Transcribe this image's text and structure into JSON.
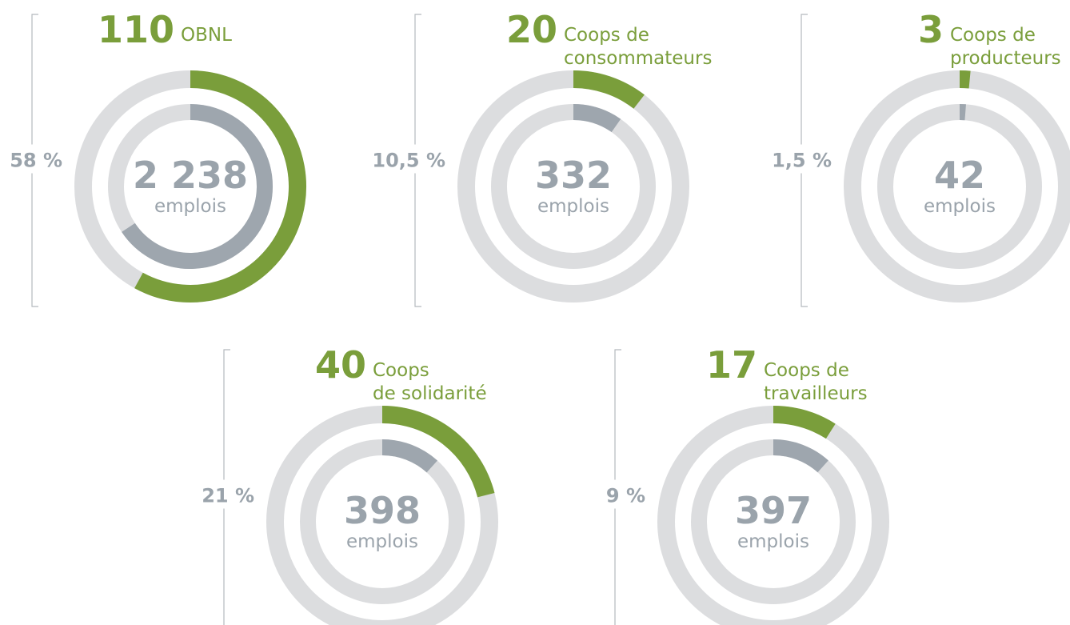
{
  "chart_data": [
    {
      "type": "donut",
      "count": 110,
      "label": [
        "OBNL"
      ],
      "percent": 58,
      "percent_label": "58 %",
      "jobs": 2238,
      "jobs_label": "2 238",
      "unit": "emplois"
    },
    {
      "type": "donut",
      "count": 20,
      "label": [
        "Coops de",
        "consommateurs"
      ],
      "percent": 10.5,
      "percent_label": "10,5 %",
      "jobs": 332,
      "jobs_label": "332",
      "unit": "emplois"
    },
    {
      "type": "donut",
      "count": 3,
      "label": [
        "Coops de",
        "producteurs"
      ],
      "percent": 1.5,
      "percent_label": "1,5 %",
      "jobs": 42,
      "jobs_label": "42",
      "unit": "emplois"
    },
    {
      "type": "donut",
      "count": 40,
      "label": [
        "Coops",
        "de solidarité"
      ],
      "percent": 21,
      "percent_label": "21 %",
      "jobs": 398,
      "jobs_label": "398",
      "unit": "emplois"
    },
    {
      "type": "donut",
      "count": 17,
      "label": [
        "Coops de",
        "travailleurs"
      ],
      "percent": 9,
      "percent_label": "9 %",
      "jobs": 397,
      "jobs_label": "397",
      "unit": "emplois"
    }
  ]
}
